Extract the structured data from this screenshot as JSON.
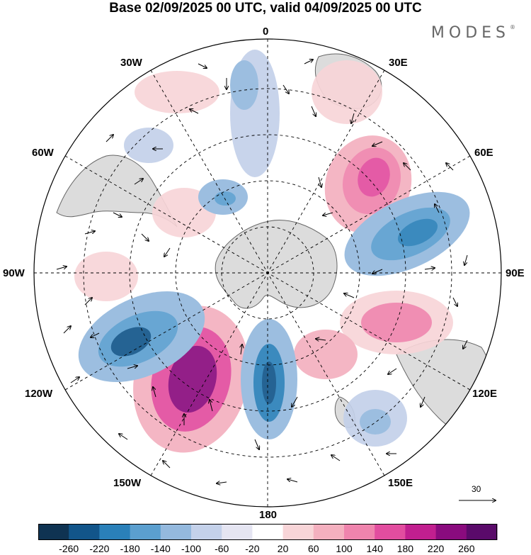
{
  "title": "Base 02/09/2025 00 UTC, valid 04/09/2025 00 UTC",
  "brand": "MODES",
  "brand_mark": "®",
  "longitude_labels": {
    "n0": "0",
    "e30": "30E",
    "e60": "60E",
    "e90": "90E",
    "e120": "120E",
    "e150": "150E",
    "s180": "180",
    "w150": "150W",
    "w120": "120W",
    "w90": "90W",
    "w60": "60W",
    "w30": "30W"
  },
  "reference_vector": {
    "label": "30"
  },
  "colorbar": {
    "ticks": [
      "-260",
      "-220",
      "-180",
      "-140",
      "-100",
      "-60",
      "-20",
      "20",
      "60",
      "100",
      "140",
      "180",
      "220",
      "260"
    ],
    "colors": [
      "#0f3352",
      "#12558a",
      "#2a80b9",
      "#5b9fcf",
      "#94b9de",
      "#c4d1ea",
      "#e5e5f2",
      "#ffffff",
      "#f8d5d8",
      "#f4b0bf",
      "#ef84ad",
      "#e24d9f",
      "#c11f8f",
      "#8a0b7e",
      "#5a0a6a"
    ]
  },
  "colors": {
    "land": "#dcdcdc",
    "coast": "#666666",
    "grid": "#000000"
  }
}
